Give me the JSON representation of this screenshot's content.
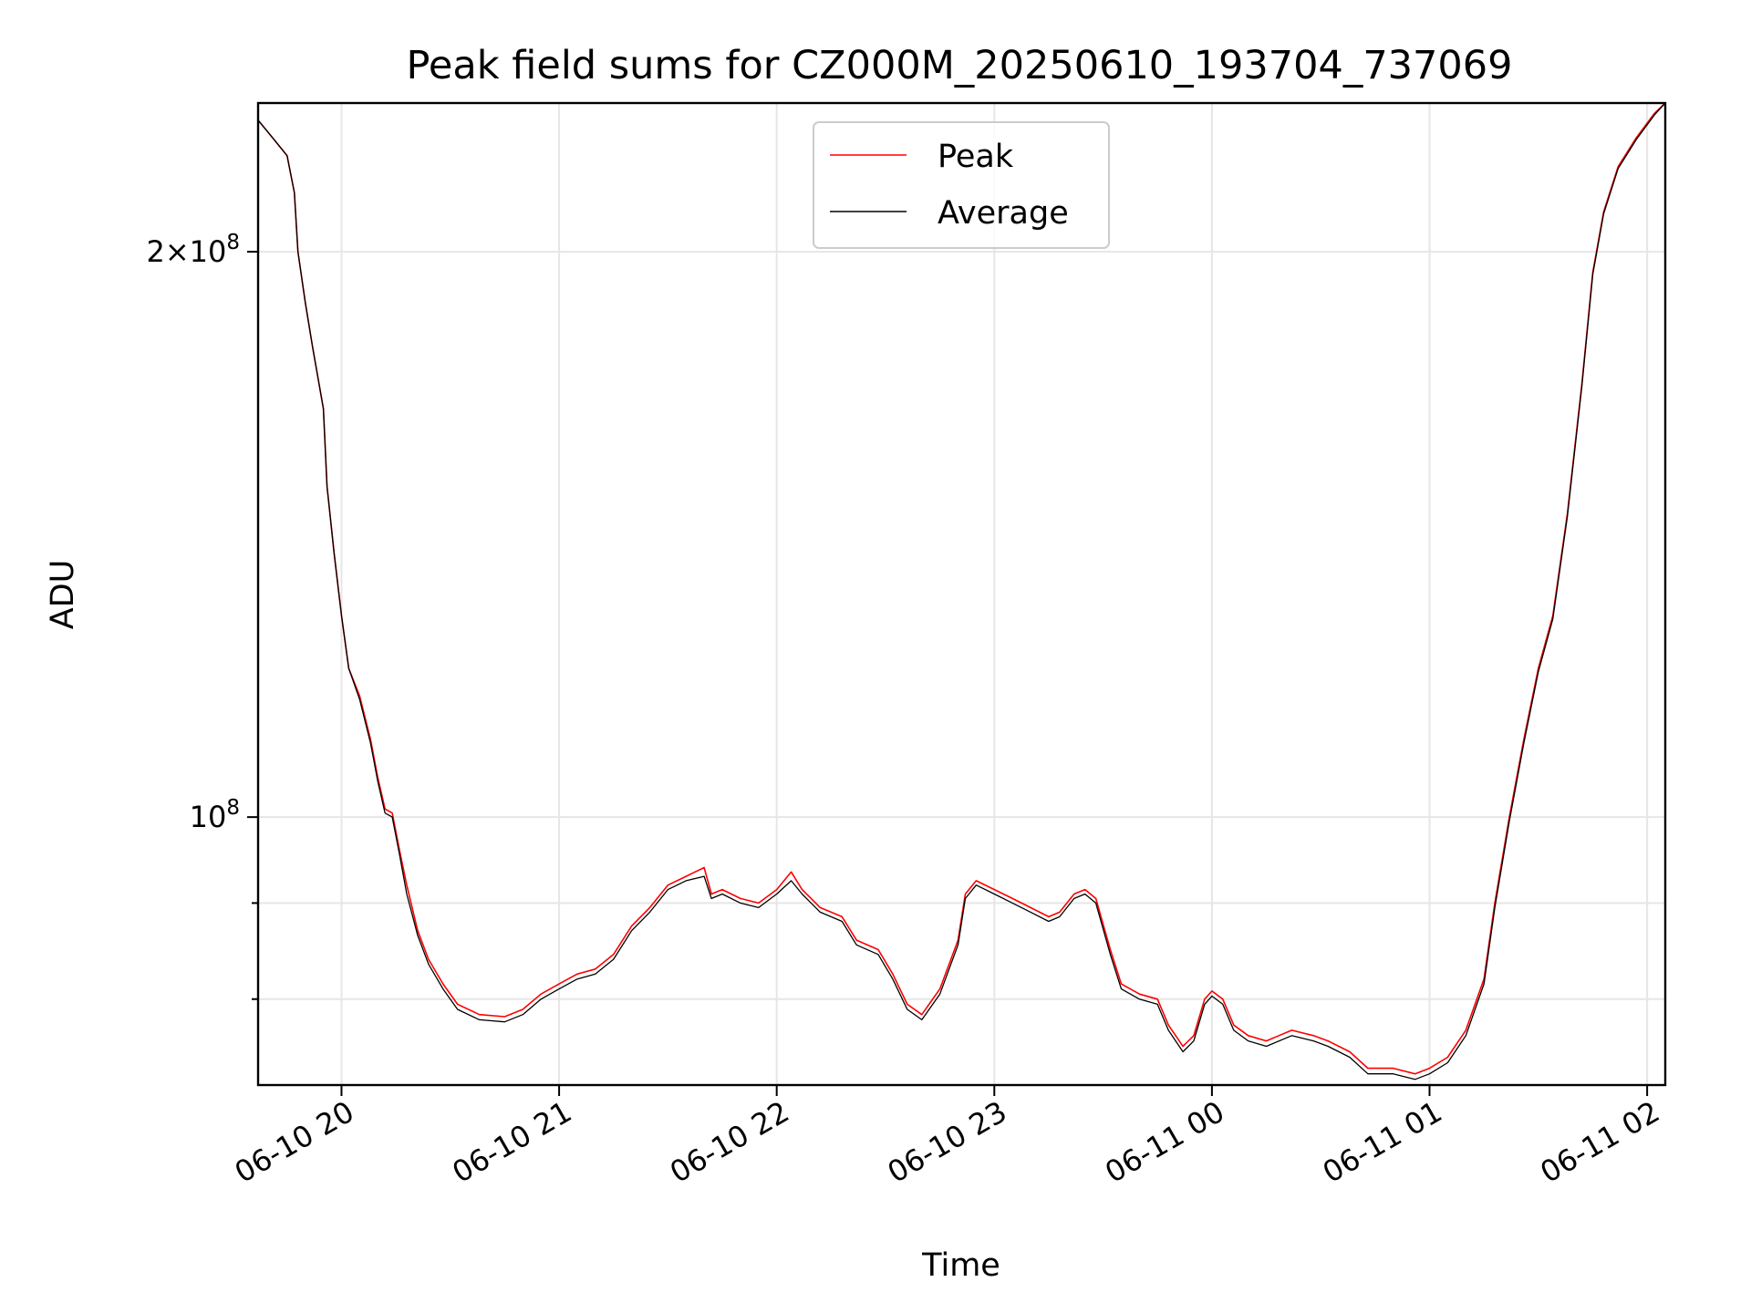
{
  "chart_data": {
    "type": "line",
    "title": "Peak field sums for CZ000M_20250610_193704_737069",
    "xlabel": "Time",
    "ylabel": "ADU",
    "y_scale": "log",
    "grid": true,
    "legend_position": "upper-center",
    "x_range": [
      "2025-06-10T19:37",
      "2025-06-11T02:05"
    ],
    "ylim": [
      72000000,
      240000000
    ],
    "x_ticks": [
      {
        "label": "06-10 20",
        "time": "2025-06-10T20:00"
      },
      {
        "label": "06-10 21",
        "time": "2025-06-10T21:00"
      },
      {
        "label": "06-10 22",
        "time": "2025-06-10T22:00"
      },
      {
        "label": "06-10 23",
        "time": "2025-06-10T23:00"
      },
      {
        "label": "06-11 00",
        "time": "2025-06-11T00:00"
      },
      {
        "label": "06-11 01",
        "time": "2025-06-11T01:00"
      },
      {
        "label": "06-11 02",
        "time": "2025-06-11T02:00"
      }
    ],
    "y_ticks_major": [
      {
        "value": 100000000,
        "base": "10",
        "exp": "8",
        "coef": ""
      },
      {
        "value": 200000000,
        "base": "10",
        "exp": "8",
        "coef": "2"
      }
    ],
    "y_ticks_minor": [
      80000000,
      90000000
    ],
    "series": [
      {
        "name": "Peak",
        "color": "#ff0000",
        "points": [
          [
            "2025-06-10T19:37",
            235000000
          ],
          [
            "2025-06-10T19:41",
            230000000
          ],
          [
            "2025-06-10T19:45",
            225000000
          ],
          [
            "2025-06-10T19:47",
            215000000
          ],
          [
            "2025-06-10T19:48",
            200000000
          ],
          [
            "2025-06-10T19:50",
            188000000
          ],
          [
            "2025-06-10T19:52",
            178000000
          ],
          [
            "2025-06-10T19:55",
            165000000
          ],
          [
            "2025-06-10T19:56",
            150000000
          ],
          [
            "2025-06-10T19:58",
            138000000
          ],
          [
            "2025-06-10T20:00",
            128000000
          ],
          [
            "2025-06-10T20:02",
            120000000
          ],
          [
            "2025-06-10T20:05",
            116000000
          ],
          [
            "2025-06-10T20:08",
            110000000
          ],
          [
            "2025-06-10T20:10",
            105000000
          ],
          [
            "2025-06-10T20:12",
            101000000
          ],
          [
            "2025-06-10T20:14",
            100500000
          ],
          [
            "2025-06-10T20:16",
            96000000
          ],
          [
            "2025-06-10T20:18",
            92000000
          ],
          [
            "2025-06-10T20:21",
            87000000
          ],
          [
            "2025-06-10T20:24",
            84000000
          ],
          [
            "2025-06-10T20:28",
            81500000
          ],
          [
            "2025-06-10T20:32",
            79500000
          ],
          [
            "2025-06-10T20:38",
            78500000
          ],
          [
            "2025-06-10T20:45",
            78300000
          ],
          [
            "2025-06-10T20:50",
            79000000
          ],
          [
            "2025-06-10T20:55",
            80500000
          ],
          [
            "2025-06-10T21:00",
            81500000
          ],
          [
            "2025-06-10T21:05",
            82500000
          ],
          [
            "2025-06-10T21:10",
            83000000
          ],
          [
            "2025-06-10T21:15",
            84500000
          ],
          [
            "2025-06-10T21:20",
            87500000
          ],
          [
            "2025-06-10T21:25",
            89500000
          ],
          [
            "2025-06-10T21:30",
            92000000
          ],
          [
            "2025-06-10T21:35",
            93000000
          ],
          [
            "2025-06-10T21:40",
            94000000
          ],
          [
            "2025-06-10T21:42",
            91000000
          ],
          [
            "2025-06-10T21:45",
            91500000
          ],
          [
            "2025-06-10T21:50",
            90500000
          ],
          [
            "2025-06-10T21:55",
            90000000
          ],
          [
            "2025-06-10T22:00",
            91500000
          ],
          [
            "2025-06-10T22:04",
            93500000
          ],
          [
            "2025-06-10T22:07",
            91500000
          ],
          [
            "2025-06-10T22:12",
            89500000
          ],
          [
            "2025-06-10T22:18",
            88500000
          ],
          [
            "2025-06-10T22:22",
            86000000
          ],
          [
            "2025-06-10T22:28",
            85000000
          ],
          [
            "2025-06-10T22:32",
            82500000
          ],
          [
            "2025-06-10T22:36",
            79500000
          ],
          [
            "2025-06-10T22:40",
            78500000
          ],
          [
            "2025-06-10T22:45",
            81000000
          ],
          [
            "2025-06-10T22:50",
            86000000
          ],
          [
            "2025-06-10T22:52",
            91000000
          ],
          [
            "2025-06-10T22:55",
            92500000
          ],
          [
            "2025-06-10T23:00",
            91500000
          ],
          [
            "2025-06-10T23:05",
            90500000
          ],
          [
            "2025-06-10T23:10",
            89500000
          ],
          [
            "2025-06-10T23:15",
            88500000
          ],
          [
            "2025-06-10T23:18",
            89000000
          ],
          [
            "2025-06-10T23:22",
            91000000
          ],
          [
            "2025-06-10T23:25",
            91500000
          ],
          [
            "2025-06-10T23:28",
            90500000
          ],
          [
            "2025-06-10T23:32",
            85000000
          ],
          [
            "2025-06-10T23:35",
            81500000
          ],
          [
            "2025-06-10T23:40",
            80500000
          ],
          [
            "2025-06-10T23:45",
            80000000
          ],
          [
            "2025-06-10T23:48",
            77500000
          ],
          [
            "2025-06-10T23:52",
            75500000
          ],
          [
            "2025-06-10T23:55",
            76500000
          ],
          [
            "2025-06-10T23:58",
            80000000
          ],
          [
            "2025-06-11T00:00",
            80800000
          ],
          [
            "2025-06-11T00:03",
            80000000
          ],
          [
            "2025-06-11T00:06",
            77500000
          ],
          [
            "2025-06-11T00:10",
            76500000
          ],
          [
            "2025-06-11T00:15",
            76000000
          ],
          [
            "2025-06-11T00:22",
            77000000
          ],
          [
            "2025-06-11T00:28",
            76500000
          ],
          [
            "2025-06-11T00:32",
            76000000
          ],
          [
            "2025-06-11T00:38",
            75000000
          ],
          [
            "2025-06-11T00:43",
            73500000
          ],
          [
            "2025-06-11T00:50",
            73500000
          ],
          [
            "2025-06-11T00:56",
            73000000
          ],
          [
            "2025-06-11T01:00",
            73500000
          ],
          [
            "2025-06-11T01:05",
            74500000
          ],
          [
            "2025-06-11T01:10",
            77000000
          ],
          [
            "2025-06-11T01:15",
            82000000
          ],
          [
            "2025-06-11T01:18",
            90000000
          ],
          [
            "2025-06-11T01:22",
            100000000
          ],
          [
            "2025-06-11T01:26",
            110000000
          ],
          [
            "2025-06-11T01:30",
            120000000
          ],
          [
            "2025-06-11T01:34",
            128000000
          ],
          [
            "2025-06-11T01:38",
            145000000
          ],
          [
            "2025-06-11T01:42",
            170000000
          ],
          [
            "2025-06-11T01:45",
            195000000
          ],
          [
            "2025-06-11T01:48",
            210000000
          ],
          [
            "2025-06-11T01:52",
            222000000
          ],
          [
            "2025-06-11T01:57",
            230000000
          ],
          [
            "2025-06-11T02:02",
            237000000
          ],
          [
            "2025-06-11T02:05",
            240000000
          ]
        ]
      },
      {
        "name": "Average",
        "color": "#000000",
        "points": [
          [
            "2025-06-10T19:37",
            235000000
          ],
          [
            "2025-06-10T19:41",
            230000000
          ],
          [
            "2025-06-10T19:45",
            225000000
          ],
          [
            "2025-06-10T19:47",
            215000000
          ],
          [
            "2025-06-10T19:48",
            200000000
          ],
          [
            "2025-06-10T19:50",
            188000000
          ],
          [
            "2025-06-10T19:52",
            178000000
          ],
          [
            "2025-06-10T19:55",
            165000000
          ],
          [
            "2025-06-10T19:56",
            150000000
          ],
          [
            "2025-06-10T19:58",
            138000000
          ],
          [
            "2025-06-10T20:00",
            128000000
          ],
          [
            "2025-06-10T20:02",
            120000000
          ],
          [
            "2025-06-10T20:05",
            115500000
          ],
          [
            "2025-06-10T20:08",
            109500000
          ],
          [
            "2025-06-10T20:10",
            104500000
          ],
          [
            "2025-06-10T20:12",
            100500000
          ],
          [
            "2025-06-10T20:14",
            100000000
          ],
          [
            "2025-06-10T20:16",
            95500000
          ],
          [
            "2025-06-10T20:18",
            91000000
          ],
          [
            "2025-06-10T20:21",
            86500000
          ],
          [
            "2025-06-10T20:24",
            83500000
          ],
          [
            "2025-06-10T20:28",
            81000000
          ],
          [
            "2025-06-10T20:32",
            79000000
          ],
          [
            "2025-06-10T20:38",
            78000000
          ],
          [
            "2025-06-10T20:45",
            77800000
          ],
          [
            "2025-06-10T20:50",
            78500000
          ],
          [
            "2025-06-10T20:55",
            80000000
          ],
          [
            "2025-06-10T21:00",
            81000000
          ],
          [
            "2025-06-10T21:05",
            82000000
          ],
          [
            "2025-06-10T21:10",
            82500000
          ],
          [
            "2025-06-10T21:15",
            84000000
          ],
          [
            "2025-06-10T21:20",
            87000000
          ],
          [
            "2025-06-10T21:25",
            89000000
          ],
          [
            "2025-06-10T21:30",
            91500000
          ],
          [
            "2025-06-10T21:35",
            92500000
          ],
          [
            "2025-06-10T21:40",
            93000000
          ],
          [
            "2025-06-10T21:42",
            90500000
          ],
          [
            "2025-06-10T21:45",
            91000000
          ],
          [
            "2025-06-10T21:50",
            90000000
          ],
          [
            "2025-06-10T21:55",
            89500000
          ],
          [
            "2025-06-10T22:00",
            91000000
          ],
          [
            "2025-06-10T22:04",
            92500000
          ],
          [
            "2025-06-10T22:07",
            91000000
          ],
          [
            "2025-06-10T22:12",
            89000000
          ],
          [
            "2025-06-10T22:18",
            88000000
          ],
          [
            "2025-06-10T22:22",
            85500000
          ],
          [
            "2025-06-10T22:28",
            84500000
          ],
          [
            "2025-06-10T22:32",
            82000000
          ],
          [
            "2025-06-10T22:36",
            79000000
          ],
          [
            "2025-06-10T22:40",
            78000000
          ],
          [
            "2025-06-10T22:45",
            80500000
          ],
          [
            "2025-06-10T22:50",
            85500000
          ],
          [
            "2025-06-10T22:52",
            90500000
          ],
          [
            "2025-06-10T22:55",
            92000000
          ],
          [
            "2025-06-10T23:00",
            91000000
          ],
          [
            "2025-06-10T23:05",
            90000000
          ],
          [
            "2025-06-10T23:10",
            89000000
          ],
          [
            "2025-06-10T23:15",
            88000000
          ],
          [
            "2025-06-10T23:18",
            88500000
          ],
          [
            "2025-06-10T23:22",
            90500000
          ],
          [
            "2025-06-10T23:25",
            91000000
          ],
          [
            "2025-06-10T23:28",
            90000000
          ],
          [
            "2025-06-10T23:32",
            84500000
          ],
          [
            "2025-06-10T23:35",
            81000000
          ],
          [
            "2025-06-10T23:40",
            80000000
          ],
          [
            "2025-06-10T23:45",
            79500000
          ],
          [
            "2025-06-10T23:48",
            77000000
          ],
          [
            "2025-06-10T23:52",
            75000000
          ],
          [
            "2025-06-10T23:55",
            76000000
          ],
          [
            "2025-06-10T23:58",
            79500000
          ],
          [
            "2025-06-11T00:00",
            80300000
          ],
          [
            "2025-06-11T00:03",
            79500000
          ],
          [
            "2025-06-11T00:06",
            77000000
          ],
          [
            "2025-06-11T00:10",
            76000000
          ],
          [
            "2025-06-11T00:15",
            75500000
          ],
          [
            "2025-06-11T00:22",
            76500000
          ],
          [
            "2025-06-11T00:28",
            76000000
          ],
          [
            "2025-06-11T00:32",
            75500000
          ],
          [
            "2025-06-11T00:38",
            74500000
          ],
          [
            "2025-06-11T00:43",
            73000000
          ],
          [
            "2025-06-11T00:50",
            73000000
          ],
          [
            "2025-06-11T00:56",
            72500000
          ],
          [
            "2025-06-11T01:00",
            73000000
          ],
          [
            "2025-06-11T01:05",
            74000000
          ],
          [
            "2025-06-11T01:10",
            76500000
          ],
          [
            "2025-06-11T01:15",
            81500000
          ],
          [
            "2025-06-11T01:18",
            89500000
          ],
          [
            "2025-06-11T01:22",
            99500000
          ],
          [
            "2025-06-11T01:26",
            109500000
          ],
          [
            "2025-06-11T01:30",
            119500000
          ],
          [
            "2025-06-11T01:34",
            127500000
          ],
          [
            "2025-06-11T01:38",
            144500000
          ],
          [
            "2025-06-11T01:42",
            169500000
          ],
          [
            "2025-06-11T01:45",
            194500000
          ],
          [
            "2025-06-11T01:48",
            209500000
          ],
          [
            "2025-06-11T01:52",
            221500000
          ],
          [
            "2025-06-11T01:57",
            229500000
          ],
          [
            "2025-06-11T02:02",
            236500000
          ],
          [
            "2025-06-11T02:05",
            240000000
          ]
        ]
      }
    ]
  }
}
